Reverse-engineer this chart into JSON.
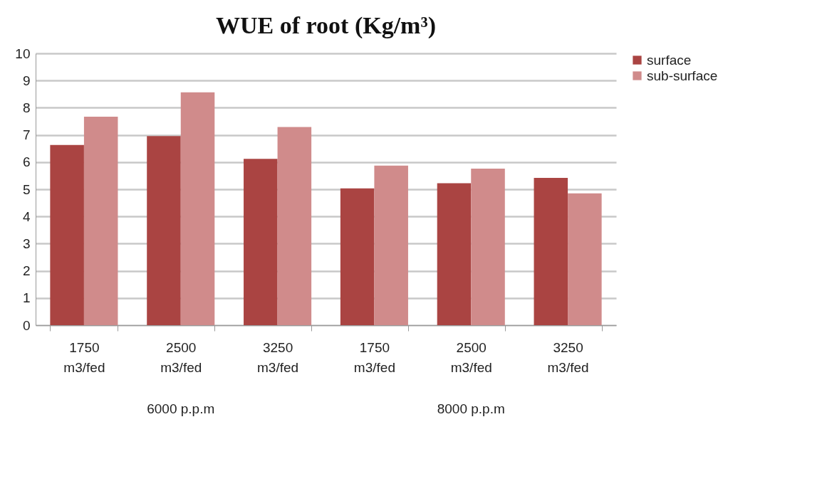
{
  "chart_data": {
    "type": "bar",
    "title": "WUE of root (Kg/m³)",
    "categories": [
      "1750 m3/fed",
      "2500 m3/fed",
      "3250 m3/fed",
      "1750 m3/fed",
      "2500 m3/fed",
      "3250 m3/fed"
    ],
    "series": [
      {
        "name": "surface",
        "color": "#aa4442",
        "values": [
          6.63,
          6.96,
          6.12,
          5.03,
          5.22,
          5.42
        ]
      },
      {
        "name": "sub-surface",
        "color": "#d08b8b",
        "values": [
          7.67,
          8.57,
          7.29,
          5.87,
          5.76,
          4.85
        ]
      }
    ],
    "annotations": [
      "6000 p.p.m",
      "8000 p.p.m"
    ],
    "ylim": [
      0,
      10
    ],
    "yticks": [
      0,
      1,
      2,
      3,
      4,
      5,
      6,
      7,
      8,
      9,
      10
    ],
    "grid": "y",
    "legend": "right"
  }
}
